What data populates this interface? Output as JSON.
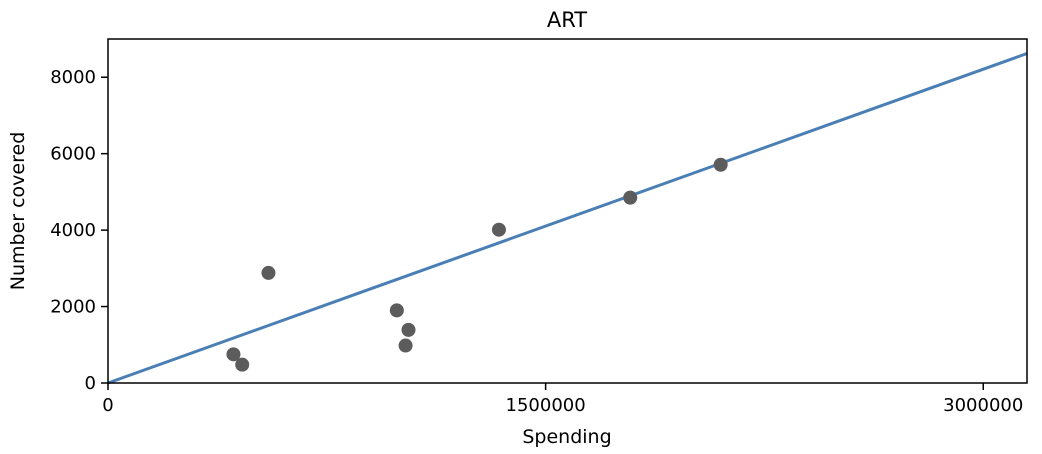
{
  "chart_data": {
    "type": "scatter",
    "title": "ART",
    "xlabel": "Spending",
    "ylabel": "Number covered",
    "xlim": [
      0,
      3150000
    ],
    "ylim": [
      0,
      9000
    ],
    "xticks": [
      0,
      1500000,
      3000000
    ],
    "xtick_labels": [
      "0",
      "1500000",
      "3000000"
    ],
    "yticks": [
      0,
      2000,
      4000,
      6000,
      8000
    ],
    "ytick_labels": [
      "0",
      "2000",
      "4000",
      "6000",
      "8000"
    ],
    "grid": false,
    "points": [
      {
        "x": 430000,
        "y": 750
      },
      {
        "x": 460000,
        "y": 480
      },
      {
        "x": 550000,
        "y": 2880
      },
      {
        "x": 990000,
        "y": 1900
      },
      {
        "x": 1020000,
        "y": 980
      },
      {
        "x": 1030000,
        "y": 1390
      },
      {
        "x": 1340000,
        "y": 4010
      },
      {
        "x": 1790000,
        "y": 4850
      },
      {
        "x": 2100000,
        "y": 5710
      }
    ],
    "fit_line": {
      "x": [
        0,
        3150000
      ],
      "y": [
        0,
        8620
      ]
    },
    "colors": {
      "points": "#5c5c5c",
      "line": "#4a7fb5",
      "axes": "#000000"
    }
  }
}
